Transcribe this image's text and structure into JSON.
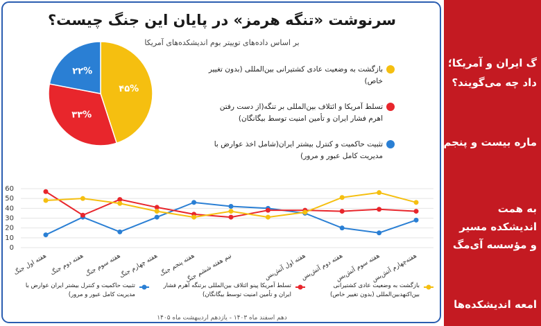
{
  "header": {
    "title": "سرنوشت «تنگه هرمز» در پایان این جنگ چیست؟",
    "subtitle": "بر اساس داده‌های توییتر بوم اندیشکده‌های آمریکا"
  },
  "chart_data": [
    {
      "type": "pie",
      "categories": [
        "بازگشت به وضعیت عادی کشتیرانی بین‌المللی (بدون تغییر خاص)",
        "تسلط آمریکا و ائتلاف بین‌المللی بر تنگه(از دست رفتن اهرم فشار ایران و تأمین امنیت توسط بیگانگان)",
        "تثبیت حاکمیت و کنترل بیشتر ایران(شامل اخذ عوارض با مدیریت کامل عبور و مرور)"
      ],
      "values": [
        45,
        33,
        22
      ],
      "value_labels": [
        "۴۵%",
        "۳۳%",
        "۲۲%"
      ],
      "colors": [
        "#f5bf10",
        "#e8262c",
        "#2a7fd4"
      ]
    },
    {
      "type": "line",
      "categories": [
        "هفته اول جنگ",
        "هفته دوم جنگ",
        "هفته سوم جنگ",
        "هفته چهارم جنگ",
        "هفته پنجم جنگ",
        "نیم هفته ششم جنگ",
        null,
        "هفته اول آتش‌بس",
        "هفته دوم آتش‌بس",
        "هفته سوم آتش‌بس",
        "هفته‌چهارم آتش‌بس"
      ],
      "series": [
        {
          "name": "تثبیت حاکمیت و کنترل بیشتر ایران عوارض با مدیریت کامل عبور و مرور)",
          "color": "#2a7fd4",
          "values": [
            13,
            31,
            16,
            31,
            46,
            42,
            40,
            35,
            20,
            15,
            28
          ]
        },
        {
          "name": "تسلط آمریکا پینو ائتلاف بین‌المللی برتنگه اهرم فشار ایران و تأمین امنیت توسط بیگانگان)",
          "color": "#e8262c",
          "values": [
            57,
            33,
            49,
            41,
            34,
            31,
            38,
            38,
            37,
            39,
            37
          ]
        },
        {
          "name": "بازگشت به وضعیت عادی کشتیرانی بین‌اکنهدبین‌المللی (بدون تغییر خاص)",
          "color": "#f5bf10",
          "values": [
            48,
            50,
            45,
            37,
            31,
            37,
            31,
            36,
            51,
            56,
            46
          ]
        }
      ],
      "ylim": [
        0,
        60
      ],
      "yticks": [
        0,
        10,
        20,
        30,
        40,
        50,
        60
      ],
      "grid": true
    }
  ],
  "footer": "دهم اسفند ماه ۱۴۰۳ - یازدهم اردیبهشت ماه ۱۴۰۵",
  "sidebar": {
    "lines": [
      "گ ایران و آمریکا؛",
      "داد چه می‌گویند؟",
      "ماره بیست و پنجم",
      "به همت",
      "اندیشکده مسیر",
      "و مؤسسه آی‌مگ",
      "امعه اندیشکده‌ها"
    ]
  }
}
